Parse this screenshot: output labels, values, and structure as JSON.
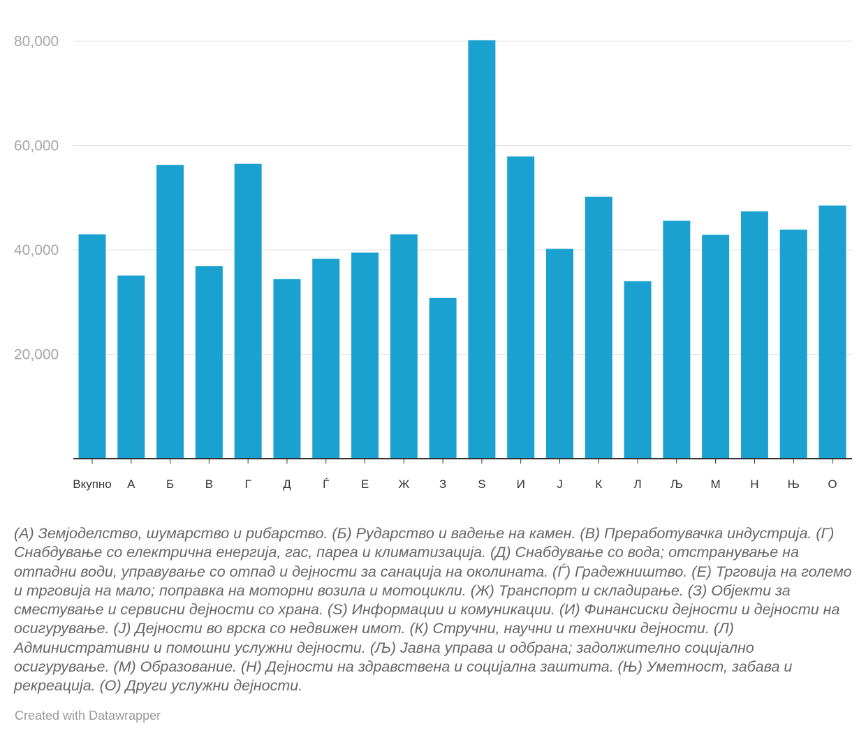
{
  "chart_data": {
    "type": "bar",
    "categories": [
      "Вкупно",
      "А",
      "Б",
      "В",
      "Г",
      "Д",
      "Ѓ",
      "Е",
      "Ж",
      "З",
      "S",
      "И",
      "Ј",
      "К",
      "Л",
      "Љ",
      "М",
      "Н",
      "Њ",
      "О"
    ],
    "values": [
      43000,
      35100,
      56300,
      36900,
      56500,
      34400,
      38300,
      39500,
      43000,
      30800,
      80200,
      57900,
      40200,
      50200,
      34000,
      45600,
      42900,
      47400,
      43900,
      48500
    ],
    "yticks": [
      20000,
      40000,
      60000,
      80000
    ],
    "ytick_labels": [
      "20,000",
      "40,000",
      "60,000",
      "80,000"
    ],
    "ylim": [
      0,
      80000
    ],
    "grid": true,
    "bar_color": "#1aa1cf",
    "title": "",
    "xlabel": "",
    "ylabel": ""
  },
  "notes": "(А) Земјоделство, шумарство и рибарство. (Б) Рударство и вадење на камен. (В) Преработувачка индустрија. (Г) Снабдување со електрична енергија, гас, пареа и климатизација. (Д) Снабдување со вода; отстранување на отпадни води, управување со отпад и дејности за санација на околината. (Ѓ) Градежништво. (Е) Трговија на големо и трговија на мало; поправка на моторни возила и мотоцикли. (Ж) Транспорт и складирање. (З) Објекти за сместување и сервисни дејности со храна. (S) Информации и комуникации. (И) Финансиски дејности и дејности на осигурување. (Ј) Дејности во врска со недвижен имот. (К) Стручни, научни и технички дејности. (Л) Административни и помошни услужни дејности. (Љ) Јавна управа и одбрана; задолжително социјално осигурување. (М) Образование. (Н) Дејности на здравствена и социјална заштита. (Њ) Уметност, забава и рекреација. (О) Други услужни дејности.",
  "credit": "Created with Datawrapper"
}
